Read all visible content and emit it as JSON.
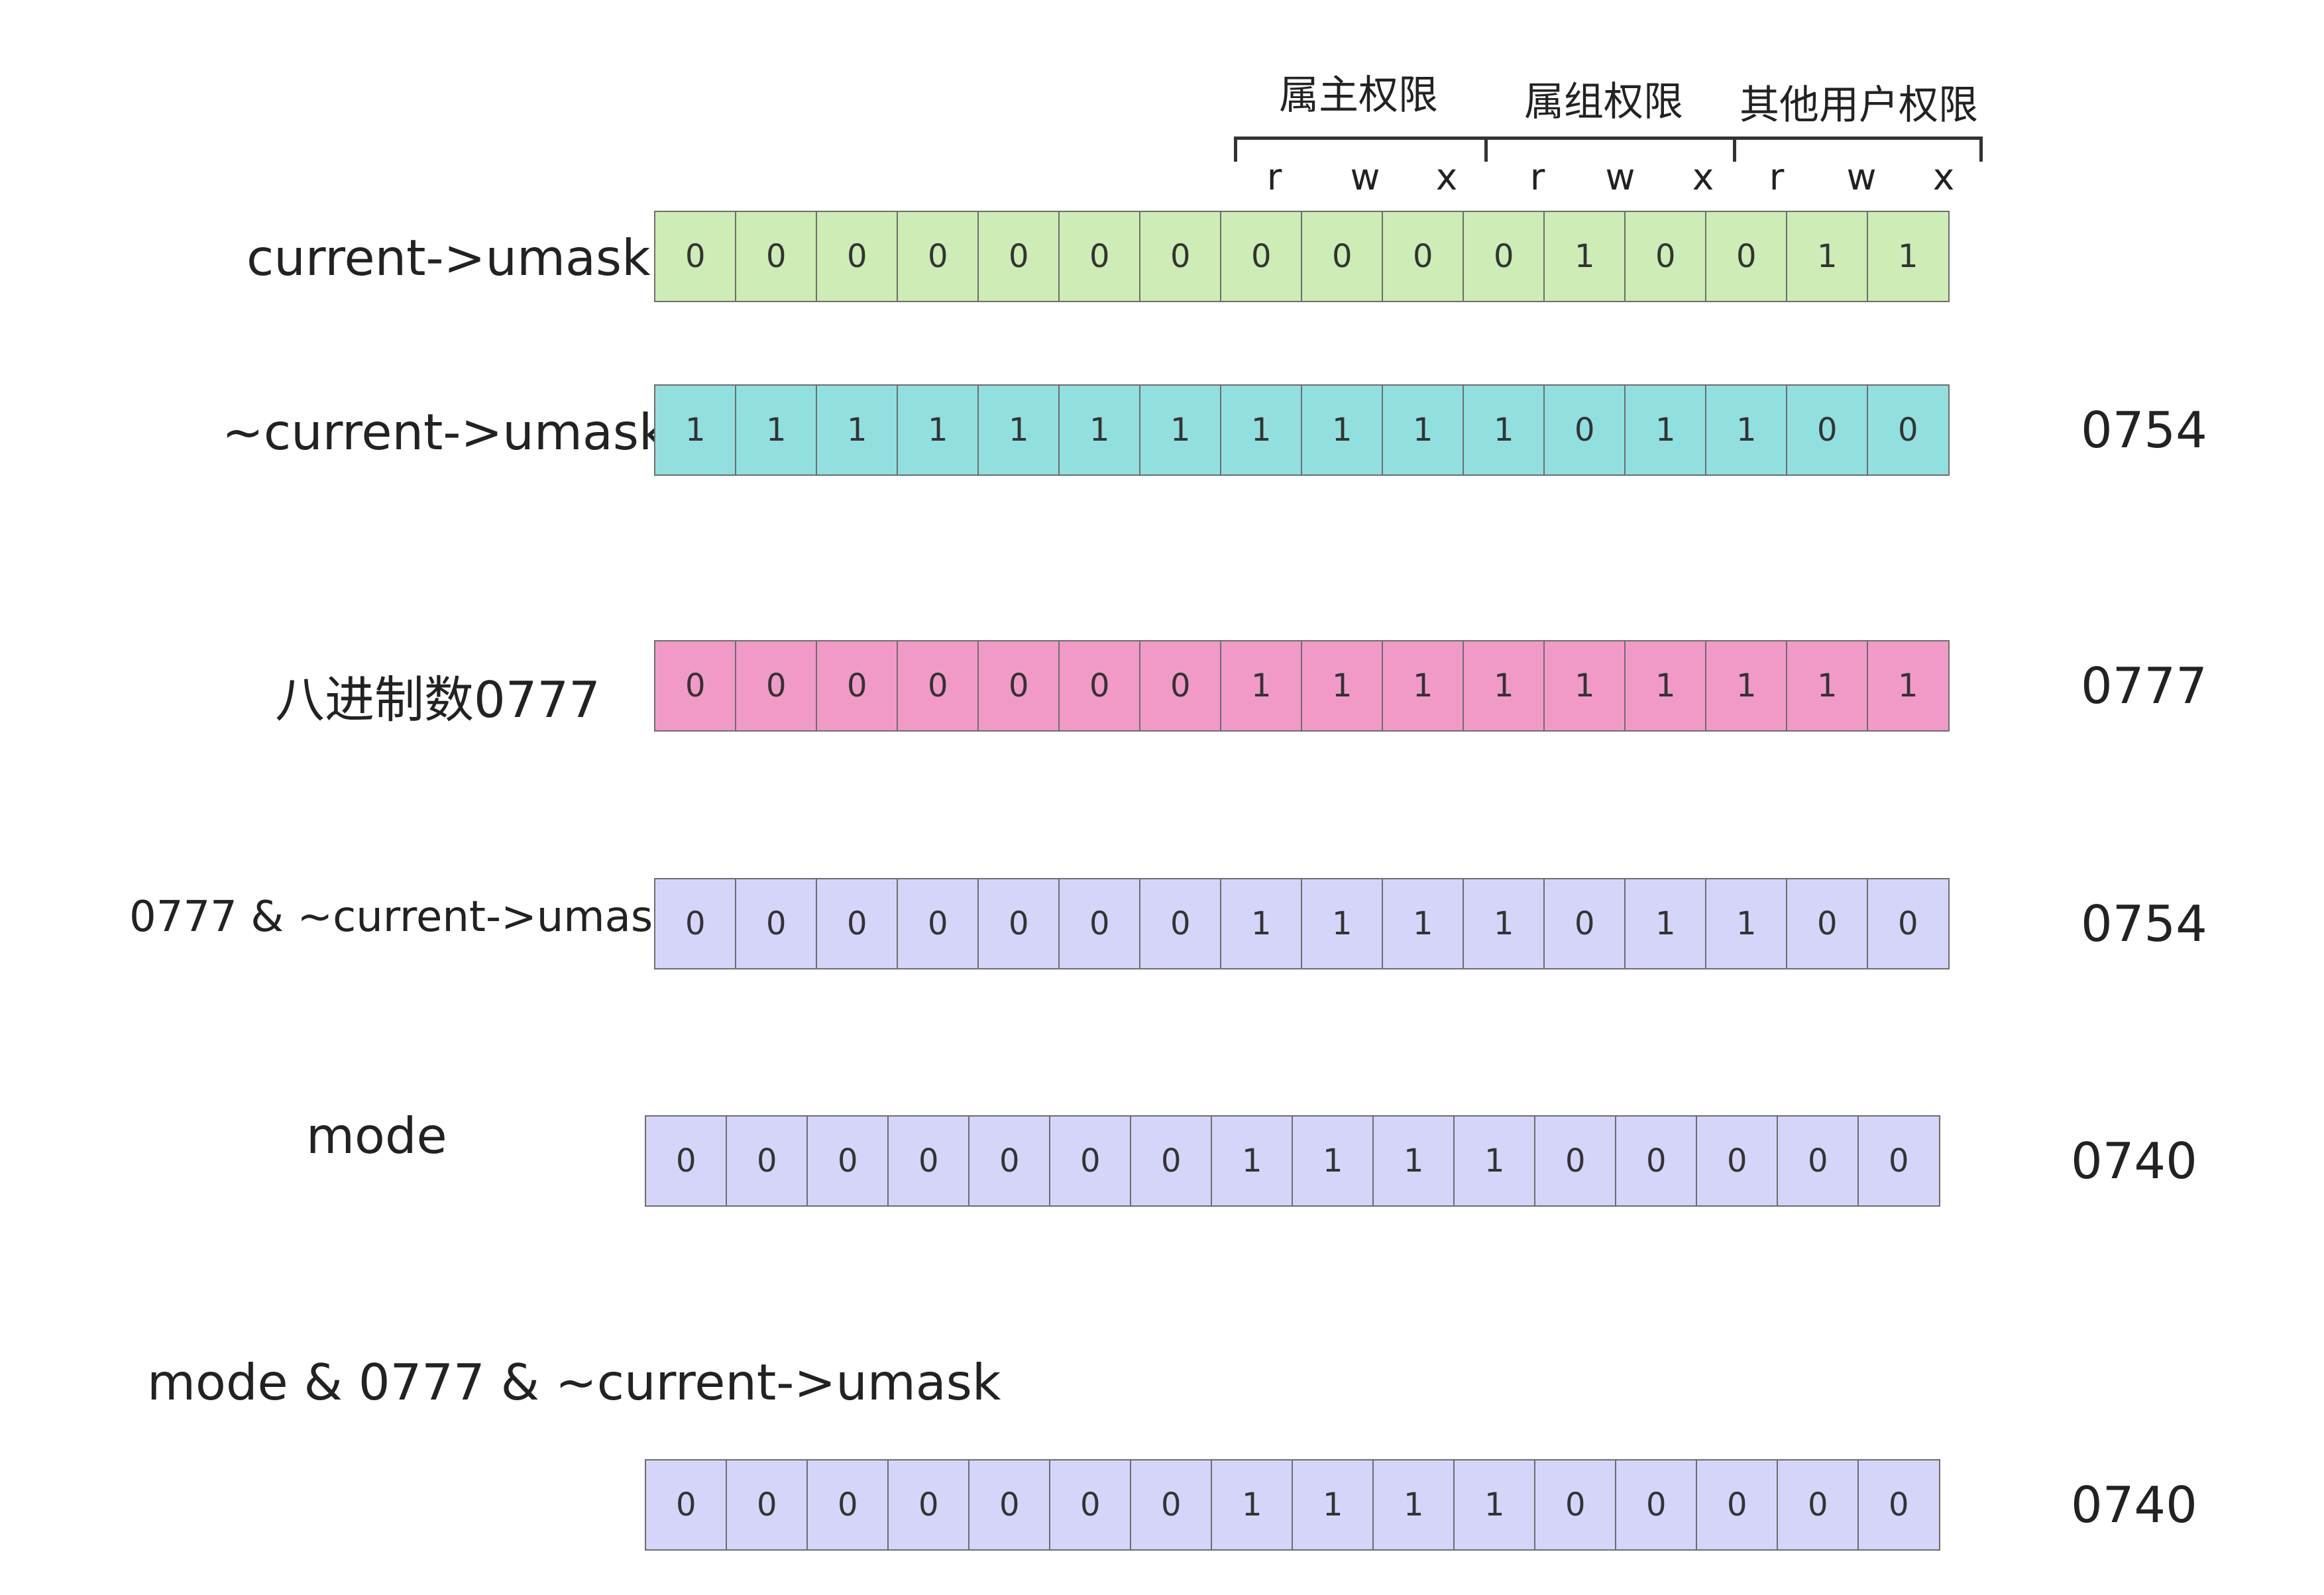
{
  "headers": {
    "owner": "属主权限",
    "group": "属组权限",
    "others": "其他用户权限"
  },
  "perm_letters": [
    "r",
    "w",
    "x",
    "r",
    "w",
    "x",
    "r",
    "w",
    "x"
  ],
  "rows": [
    {
      "label": "current->umask",
      "bits": [
        "0",
        "0",
        "0",
        "0",
        "0",
        "0",
        "0",
        "0",
        "0",
        "0",
        "0",
        "1",
        "0",
        "0",
        "1",
        "1"
      ],
      "octal": "",
      "color": "#cdecb6"
    },
    {
      "label": "~current->umask",
      "bits": [
        "1",
        "1",
        "1",
        "1",
        "1",
        "1",
        "1",
        "1",
        "1",
        "1",
        "1",
        "0",
        "1",
        "1",
        "0",
        "0"
      ],
      "octal": "0754",
      "color": "#92dfe0"
    },
    {
      "label": "八进制数0777",
      "bits": [
        "0",
        "0",
        "0",
        "0",
        "0",
        "0",
        "0",
        "1",
        "1",
        "1",
        "1",
        "1",
        "1",
        "1",
        "1",
        "1"
      ],
      "octal": "0777",
      "color": "#f19ac8"
    },
    {
      "label": "0777 & ~current->umask",
      "bits": [
        "0",
        "0",
        "0",
        "0",
        "0",
        "0",
        "0",
        "1",
        "1",
        "1",
        "1",
        "0",
        "1",
        "1",
        "0",
        "0"
      ],
      "octal": "0754",
      "color": "#d4d5f8"
    },
    {
      "label": "mode",
      "bits": [
        "0",
        "0",
        "0",
        "0",
        "0",
        "0",
        "0",
        "1",
        "1",
        "1",
        "1",
        "0",
        "0",
        "0",
        "0",
        "0"
      ],
      "octal": "0740",
      "color": "#d4d5f8"
    },
    {
      "label": "mode & 0777 & ~current->umask",
      "bits": [
        "0",
        "0",
        "0",
        "0",
        "0",
        "0",
        "0",
        "1",
        "1",
        "1",
        "1",
        "0",
        "0",
        "0",
        "0",
        "0"
      ],
      "octal": "0740",
      "color": "#d4d5f8"
    }
  ]
}
